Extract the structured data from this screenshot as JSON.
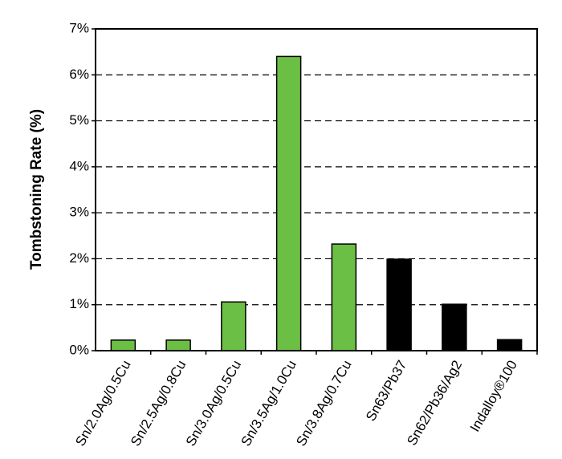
{
  "chart_data": {
    "type": "bar",
    "y_label": "Tombstoning Rate (%)",
    "categories": [
      "Sn/2.0Ag/0.5Cu",
      "Sn/2.5Ag/0.8Cu",
      "Sn/3.0Ag/0.5Cu",
      "Sn/3.5Ag/1.0Cu",
      "Sn/3.8Ag/0.7Cu",
      "Sn63/Pb37",
      "Sn62/Pb36/Ag2",
      "Indalloy®100"
    ],
    "values": [
      0.23,
      0.23,
      1.06,
      6.4,
      2.32,
      1.99,
      1.01,
      0.24
    ],
    "colors": [
      "#6cbf45",
      "#6cbf45",
      "#6cbf45",
      "#6cbf45",
      "#6cbf45",
      "#000000",
      "#000000",
      "#000000"
    ],
    "ylim": [
      0,
      7
    ],
    "yticks": [
      {
        "value": 0,
        "label": "0%"
      },
      {
        "value": 1,
        "label": "1%"
      },
      {
        "value": 2,
        "label": "2%"
      },
      {
        "value": 3,
        "label": "3%"
      },
      {
        "value": 4,
        "label": "4%"
      },
      {
        "value": 5,
        "label": "5%"
      },
      {
        "value": 6,
        "label": "6%"
      },
      {
        "value": 7,
        "label": "7%"
      }
    ],
    "grid": true
  }
}
